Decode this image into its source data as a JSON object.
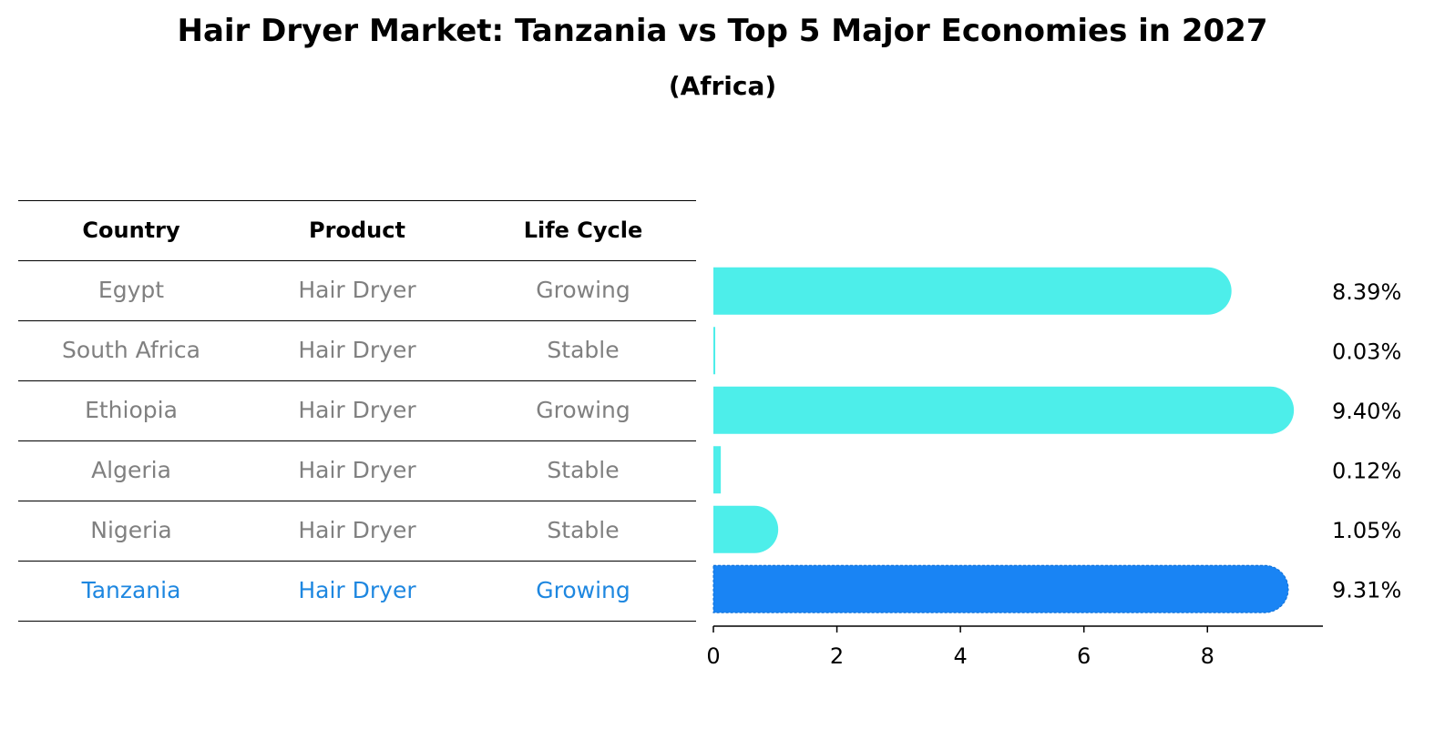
{
  "title": "Hair Dryer Market: Tanzania vs Top 5 Major Economies in 2027",
  "subtitle": "(Africa)",
  "table": {
    "headers": [
      "Country",
      "Product",
      "Life Cycle"
    ],
    "rows": [
      {
        "country": "Egypt",
        "product": "Hair Dryer",
        "life_cycle": "Growing",
        "highlight": false
      },
      {
        "country": "South Africa",
        "product": "Hair Dryer",
        "life_cycle": "Stable",
        "highlight": false
      },
      {
        "country": "Ethiopia",
        "product": "Hair Dryer",
        "life_cycle": "Growing",
        "highlight": false
      },
      {
        "country": "Algeria",
        "product": "Hair Dryer",
        "life_cycle": "Stable",
        "highlight": false
      },
      {
        "country": "Nigeria",
        "product": "Hair Dryer",
        "life_cycle": "Stable",
        "highlight": false
      },
      {
        "country": "Tanzania",
        "product": "Hair Dryer",
        "life_cycle": "Growing",
        "highlight": true
      }
    ]
  },
  "colors": {
    "bar": "#4deeea",
    "highlight_bar": "#1984f4",
    "highlight_text": "#1e87e0",
    "muted_text": "#808080"
  },
  "chart_data": {
    "type": "bar",
    "orientation": "horizontal",
    "categories": [
      "Egypt",
      "South Africa",
      "Ethiopia",
      "Algeria",
      "Nigeria",
      "Tanzania"
    ],
    "values": [
      8.39,
      0.03,
      9.4,
      0.12,
      1.05,
      9.31
    ],
    "value_labels": [
      "8.39%",
      "0.03%",
      "9.40%",
      "0.12%",
      "1.05%",
      "9.31%"
    ],
    "highlight": "Tanzania",
    "xlim": [
      0,
      9.87
    ],
    "xticks": [
      0,
      2,
      4,
      6,
      8
    ],
    "grid": false
  }
}
